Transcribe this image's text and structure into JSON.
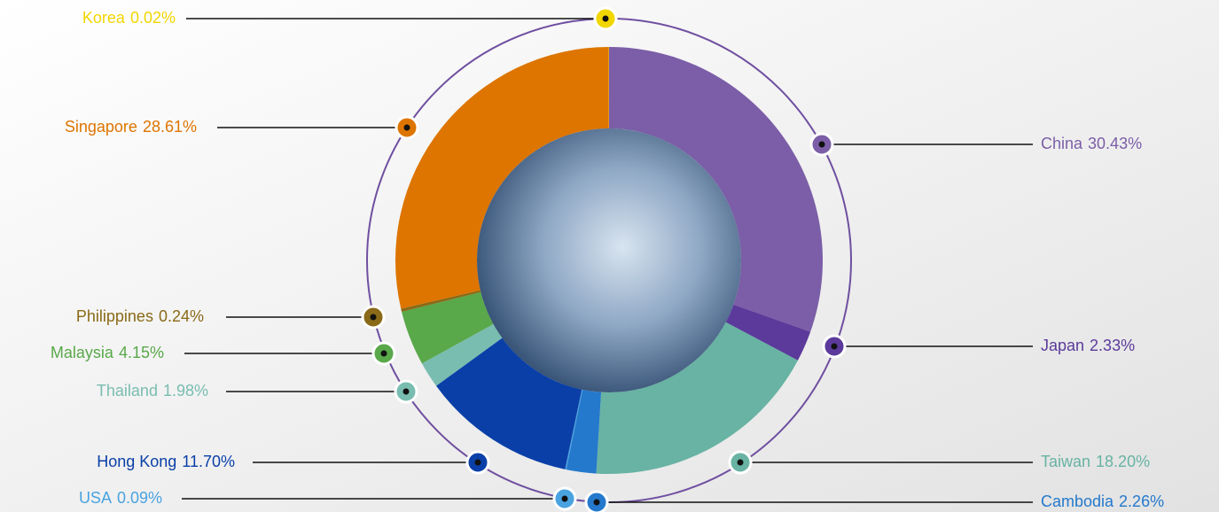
{
  "chart_data": {
    "type": "pie",
    "categories": [
      "China",
      "Japan",
      "Taiwan",
      "Cambodia",
      "USA",
      "Hong Kong",
      "Thailand",
      "Malaysia",
      "Philippines",
      "Singapore",
      "Korea"
    ],
    "values": [
      30.43,
      2.33,
      18.2,
      2.26,
      0.09,
      11.7,
      1.98,
      4.15,
      0.24,
      28.61,
      0.02
    ],
    "value_labels": [
      "30.43%",
      "2.33%",
      "18.20%",
      "2.26%",
      "0.09%",
      "11.70%",
      "1.98%",
      "4.15%",
      "0.24%",
      "28.61%",
      "0.02%"
    ],
    "colors": [
      "#7b5ea7",
      "#5b3a9b",
      "#68b3a3",
      "#2479cc",
      "#49a3e0",
      "#0a3fa8",
      "#79bdb0",
      "#59a84a",
      "#8a6a18",
      "#dd7500",
      "#f2d600"
    ]
  }
}
